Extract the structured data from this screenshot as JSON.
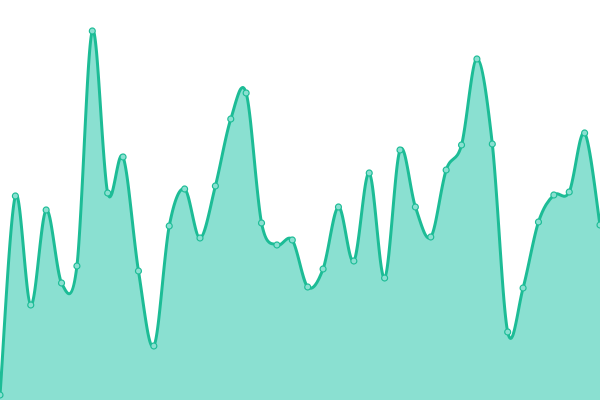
{
  "chart_data": {
    "type": "area",
    "title": "",
    "xlabel": "",
    "ylabel": "",
    "x": [
      0,
      1,
      2,
      3,
      4,
      5,
      6,
      7,
      8,
      9,
      10,
      11,
      12,
      13,
      14,
      15,
      16,
      17,
      18,
      19,
      20,
      21,
      22,
      23,
      24,
      25,
      26,
      27,
      28,
      29,
      30,
      31,
      32,
      33,
      34,
      35,
      36,
      37,
      38,
      39
    ],
    "values": [
      5,
      204,
      95,
      190,
      117,
      134,
      369,
      207,
      243,
      129,
      54,
      174,
      211,
      162,
      214,
      281,
      307,
      177,
      155,
      160,
      113,
      131,
      193,
      139,
      227,
      122,
      250,
      193,
      163,
      230,
      255,
      341,
      256,
      68,
      112,
      178,
      205,
      208,
      267,
      175
    ],
    "ylim": [
      0,
      400
    ],
    "grid": false,
    "axes_visible": false,
    "smooth": true,
    "colors": {
      "line": "#1dbc96",
      "fill": "#8ae0d1",
      "marker_fill": "#8ae0d1",
      "marker_stroke": "#1dbc96"
    }
  }
}
